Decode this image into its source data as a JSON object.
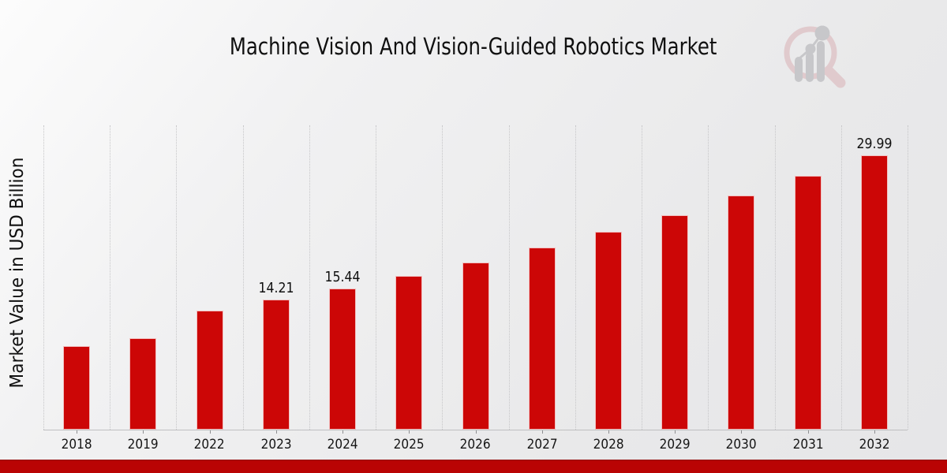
{
  "title": "Machine Vision And Vision-Guided Robotics Market",
  "ylabel": "Market Value in USD Billion",
  "colors": {
    "bar": "#cc0606",
    "footer_strip": "#b90404",
    "gridline": "#c6c6c8",
    "axis": "#bfbfc1",
    "text": "#111111",
    "logo_pink": "#e0c7ca",
    "logo_gray": "#c4c4c7"
  },
  "chart_data": {
    "type": "bar",
    "title": "Machine Vision And Vision-Guided Robotics Market",
    "xlabel": "",
    "ylabel": "Market Value in USD Billion",
    "categories": [
      "2018",
      "2019",
      "2022",
      "2023",
      "2024",
      "2025",
      "2026",
      "2027",
      "2028",
      "2029",
      "2030",
      "2031",
      "2032"
    ],
    "values": [
      9.15,
      10.05,
      13.0,
      14.21,
      15.44,
      16.8,
      18.3,
      19.9,
      21.65,
      23.5,
      25.6,
      27.75,
      29.99
    ],
    "data_labels": [
      "",
      "",
      "",
      "14.21",
      "15.44",
      "",
      "",
      "",
      "",
      "",
      "",
      "",
      "29.99"
    ],
    "ylim": [
      0,
      33.3
    ],
    "bar_color": "#cc0606",
    "grid": "vertical dotted lines between categories",
    "legend": "none"
  },
  "logo": {
    "name": "magnifier-bar-chart-logo"
  }
}
